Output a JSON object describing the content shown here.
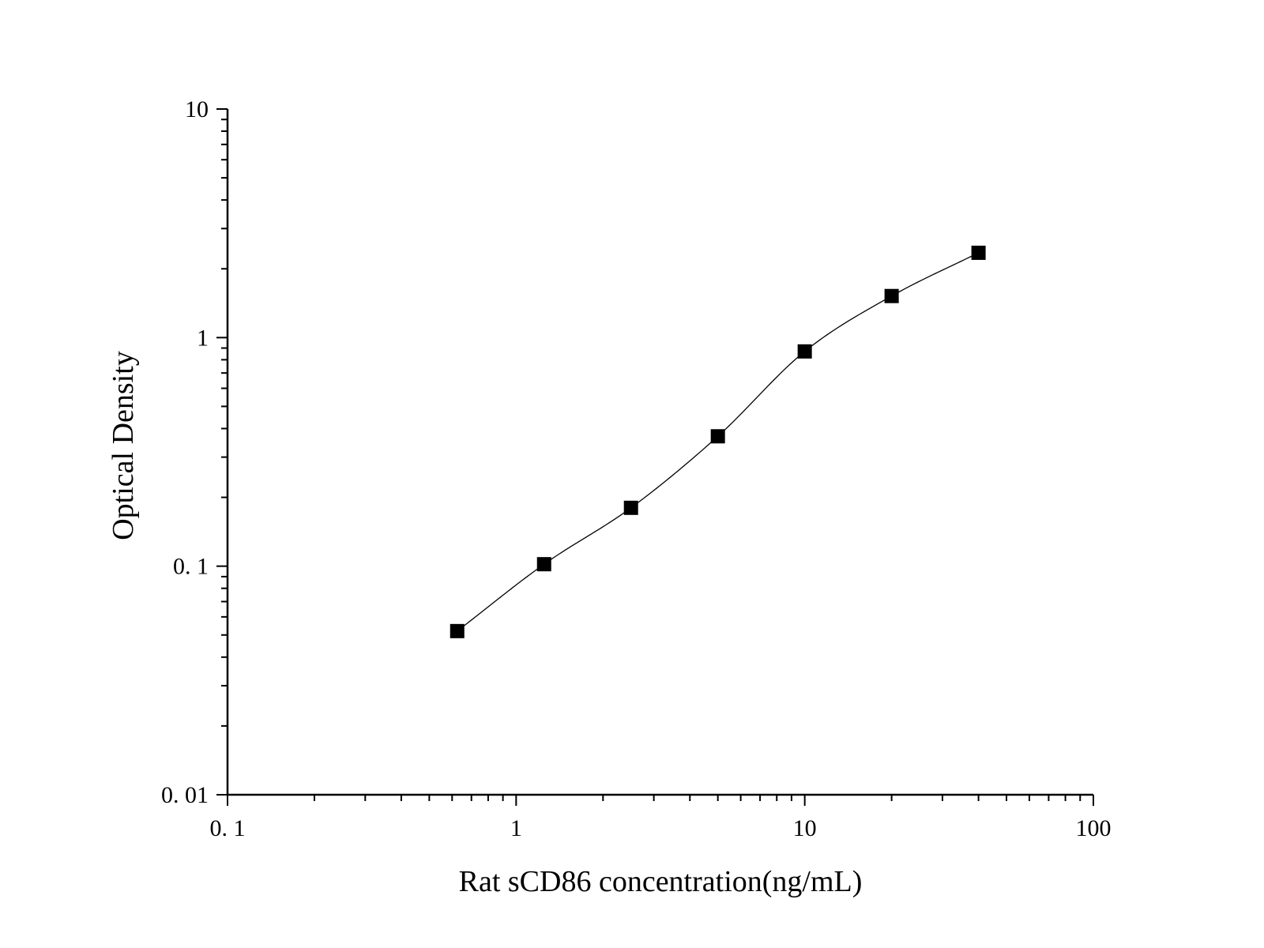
{
  "chart_data": {
    "type": "scatter",
    "xlabel": "Rat sCD86 concentration(ng/mL)",
    "ylabel": "Optical Density",
    "xscale": "log",
    "yscale": "log",
    "xlim": [
      0.1,
      100
    ],
    "ylim": [
      0.01,
      10
    ],
    "x_major_ticks": [
      0.1,
      1,
      10,
      100
    ],
    "x_tick_labels": [
      "0. 1",
      "1",
      "10",
      "100"
    ],
    "y_major_ticks": [
      0.01,
      0.1,
      1,
      10
    ],
    "y_tick_labels": [
      "0. 01",
      "0. 1",
      "1",
      "10"
    ],
    "grid": false,
    "legend": "none",
    "marker": "square",
    "marker_color": "#000000",
    "curve_color": "#000000",
    "fit_curve": "4-parameter logistic",
    "series": [
      {
        "x": [
          0.625,
          1.25,
          2.5,
          5,
          10,
          20,
          40
        ],
        "y": [
          0.052,
          0.102,
          0.18,
          0.37,
          0.87,
          1.52,
          2.35
        ]
      }
    ]
  }
}
